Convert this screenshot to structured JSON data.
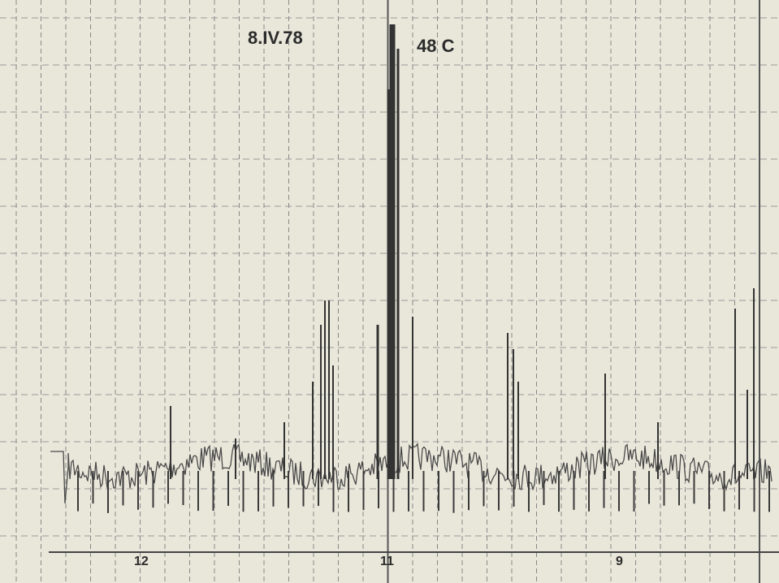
{
  "recording": {
    "date": "8.IV.78",
    "sample": "48 C",
    "axis_marks": [
      "12",
      "11",
      "9"
    ]
  }
}
